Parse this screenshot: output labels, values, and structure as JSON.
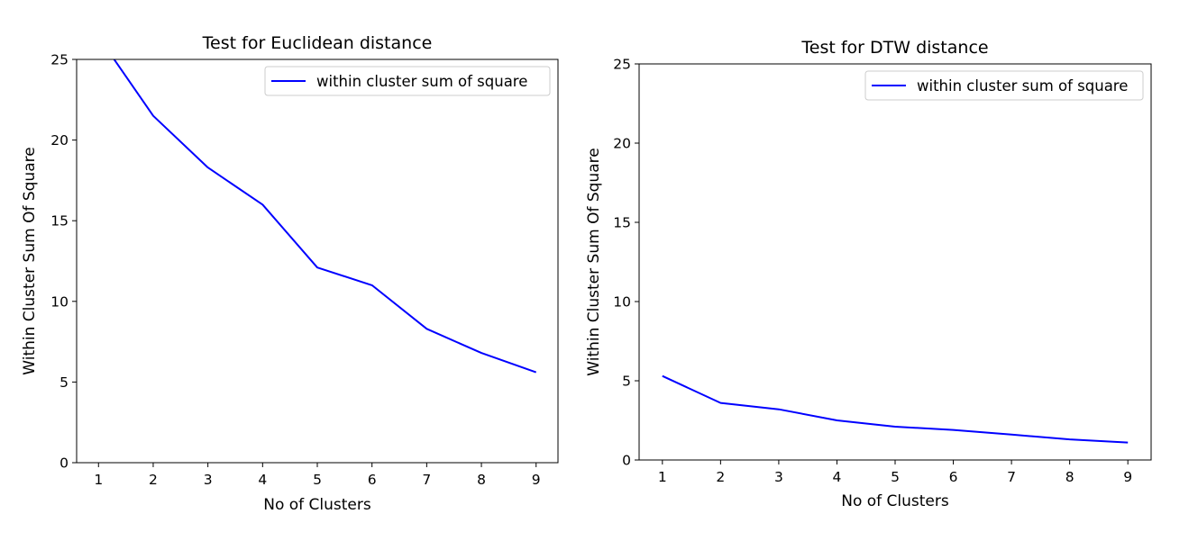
{
  "chart_data": [
    {
      "type": "line",
      "title": "Test for Euclidean distance",
      "xlabel": "No of Clusters",
      "ylabel": "Within Cluster Sum Of Square",
      "xlim": [
        0.6,
        9.4
      ],
      "ylim": [
        0,
        25
      ],
      "xticks": [
        1,
        2,
        3,
        4,
        5,
        6,
        7,
        8,
        9
      ],
      "yticks": [
        0,
        5,
        10,
        15,
        20,
        25
      ],
      "grid": false,
      "legend_position": "top-right",
      "series": [
        {
          "name": "within cluster sum of square",
          "color": "#0000ff",
          "x": [
            1,
            2,
            3,
            4,
            5,
            6,
            7,
            8,
            9
          ],
          "y": [
            26.4,
            21.5,
            18.3,
            16.0,
            12.1,
            11.0,
            8.3,
            6.8,
            5.6
          ]
        }
      ]
    },
    {
      "type": "line",
      "title": "Test for DTW distance",
      "xlabel": "No of Clusters",
      "ylabel": "Within Cluster Sum Of Square",
      "xlim": [
        0.6,
        9.4
      ],
      "ylim": [
        0,
        25
      ],
      "xticks": [
        1,
        2,
        3,
        4,
        5,
        6,
        7,
        8,
        9
      ],
      "yticks": [
        0,
        5,
        10,
        15,
        20,
        25
      ],
      "grid": false,
      "legend_position": "top-right",
      "series": [
        {
          "name": "within cluster sum of square",
          "color": "#0000ff",
          "x": [
            1,
            2,
            3,
            4,
            5,
            6,
            7,
            8,
            9
          ],
          "y": [
            5.3,
            3.6,
            3.2,
            2.5,
            2.1,
            1.9,
            1.6,
            1.3,
            1.1
          ]
        }
      ]
    }
  ]
}
